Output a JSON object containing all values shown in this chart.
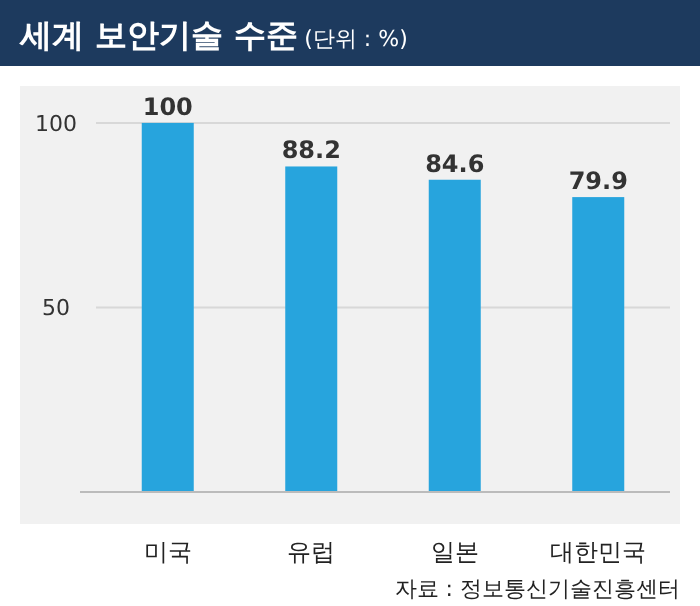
{
  "chart_data": {
    "type": "bar",
    "title": "세계 보안기술 수준",
    "subtitle": "(단위 : %)",
    "categories": [
      "미국",
      "유럽",
      "일본",
      "대한민국"
    ],
    "values": [
      100,
      88.2,
      84.6,
      79.9
    ],
    "color": "#27a4dd",
    "ylim": [
      0,
      110
    ],
    "yticks": [
      50,
      100
    ],
    "grid": "y",
    "data_labels": true,
    "annotations": [
      "자료 : 정보통신기술진흥센터"
    ]
  }
}
